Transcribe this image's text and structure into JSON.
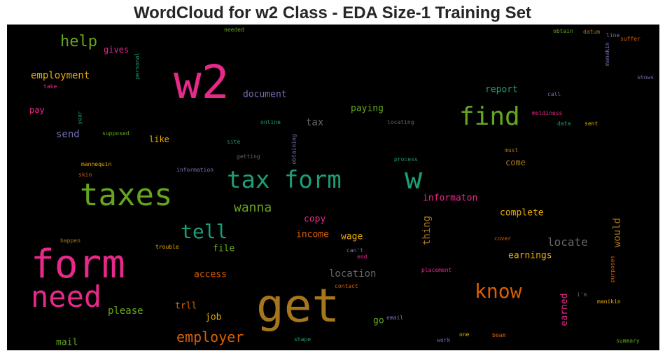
{
  "title": "WordCloud for w2 Class - EDA Size-1 Training Set",
  "words": [
    {
      "text": "w2",
      "color": "#e7298a"
    },
    {
      "text": "get",
      "color": "#a6761d"
    },
    {
      "text": "form",
      "color": "#e7298a"
    },
    {
      "text": "taxes",
      "color": "#66a61e"
    },
    {
      "text": "need",
      "color": "#e7298a"
    },
    {
      "text": "w",
      "color": "#1b9e77"
    },
    {
      "text": "tax form",
      "color": "#1b9e77"
    },
    {
      "text": "find",
      "color": "#66a61e"
    },
    {
      "text": "know",
      "color": "#d95f02"
    },
    {
      "text": "tell",
      "color": "#1b9e77"
    },
    {
      "text": "help",
      "color": "#66a61e"
    },
    {
      "text": "employer",
      "color": "#d95f02"
    },
    {
      "text": "wanna",
      "color": "#66a61e"
    },
    {
      "text": "locate",
      "color": "#666666"
    },
    {
      "text": "location",
      "color": "#666666"
    },
    {
      "text": "employment",
      "color": "#e6ab02"
    },
    {
      "text": "tax",
      "color": "#666666"
    },
    {
      "text": "please",
      "color": "#66a61e"
    },
    {
      "text": "document",
      "color": "#7570b3"
    },
    {
      "text": "send",
      "color": "#7570b3"
    },
    {
      "text": "would",
      "color": "#a6761d"
    },
    {
      "text": "thing",
      "color": "#a6761d"
    },
    {
      "text": "complete",
      "color": "#e6ab02"
    },
    {
      "text": "earnings",
      "color": "#e6ab02"
    },
    {
      "text": "informaton",
      "color": "#e7298a"
    },
    {
      "text": "wage",
      "color": "#e6ab02"
    },
    {
      "text": "income",
      "color": "#d95f02"
    },
    {
      "text": "access",
      "color": "#d95f02"
    },
    {
      "text": "trll",
      "color": "#d95f02"
    },
    {
      "text": "paying",
      "color": "#66a61e"
    },
    {
      "text": "report",
      "color": "#1b9e77"
    },
    {
      "text": "copy",
      "color": "#e7298a"
    },
    {
      "text": "file",
      "color": "#66a61e"
    },
    {
      "text": "job",
      "color": "#e6ab02"
    },
    {
      "text": "mail",
      "color": "#66a61e"
    },
    {
      "text": "go",
      "color": "#66a61e"
    },
    {
      "text": "earned",
      "color": "#e7298a"
    },
    {
      "text": "pay",
      "color": "#e7298a"
    },
    {
      "text": "like",
      "color": "#e6ab02"
    },
    {
      "text": "gives",
      "color": "#e7298a"
    },
    {
      "text": "come",
      "color": "#a6761d"
    },
    {
      "text": "needed",
      "color": "#66a61e"
    },
    {
      "text": "personal",
      "color": "#1b9e77"
    },
    {
      "text": "take",
      "color": "#e7298a"
    },
    {
      "text": "year",
      "color": "#1b9e77"
    },
    {
      "text": "supposed",
      "color": "#66a61e"
    },
    {
      "text": "mannequin",
      "color": "#e6ab02"
    },
    {
      "text": "skin",
      "color": "#d95f02"
    },
    {
      "text": "information",
      "color": "#7570b3"
    },
    {
      "text": "getting",
      "color": "#666666"
    },
    {
      "text": "obtaining",
      "color": "#7570b3"
    },
    {
      "text": "site",
      "color": "#1b9e77"
    },
    {
      "text": "online",
      "color": "#1b9e77"
    },
    {
      "text": "locating",
      "color": "#666666"
    },
    {
      "text": "process",
      "color": "#1b9e77"
    },
    {
      "text": "must",
      "color": "#a6761d"
    },
    {
      "text": "obtain",
      "color": "#66a61e"
    },
    {
      "text": "datum",
      "color": "#a6761d"
    },
    {
      "text": "line",
      "color": "#7570b3"
    },
    {
      "text": "suffer",
      "color": "#d95f02"
    },
    {
      "text": "manakin",
      "color": "#7570b3"
    },
    {
      "text": "shows",
      "color": "#7570b3"
    },
    {
      "text": "call",
      "color": "#7570b3"
    },
    {
      "text": "moldiness",
      "color": "#e7298a"
    },
    {
      "text": "data",
      "color": "#1b9e77"
    },
    {
      "text": "sent",
      "color": "#e6ab02"
    },
    {
      "text": "happen",
      "color": "#a6761d"
    },
    {
      "text": "trouble",
      "color": "#e6ab02"
    },
    {
      "text": "can't",
      "color": "#7570b3"
    },
    {
      "text": "end",
      "color": "#e7298a"
    },
    {
      "text": "contact",
      "color": "#d95f02"
    },
    {
      "text": "placement",
      "color": "#e7298a"
    },
    {
      "text": "cover",
      "color": "#d95f02"
    },
    {
      "text": "purposes",
      "color": "#d95f02"
    },
    {
      "text": "i'm",
      "color": "#666666"
    },
    {
      "text": "manikin",
      "color": "#e6ab02"
    },
    {
      "text": "email",
      "color": "#7570b3"
    },
    {
      "text": "shape",
      "color": "#1b9e77"
    },
    {
      "text": "work",
      "color": "#7570b3"
    },
    {
      "text": "one",
      "color": "#e6ab02"
    },
    {
      "text": "beam",
      "color": "#d95f02"
    },
    {
      "text": "summary",
      "color": "#66a61e"
    }
  ]
}
